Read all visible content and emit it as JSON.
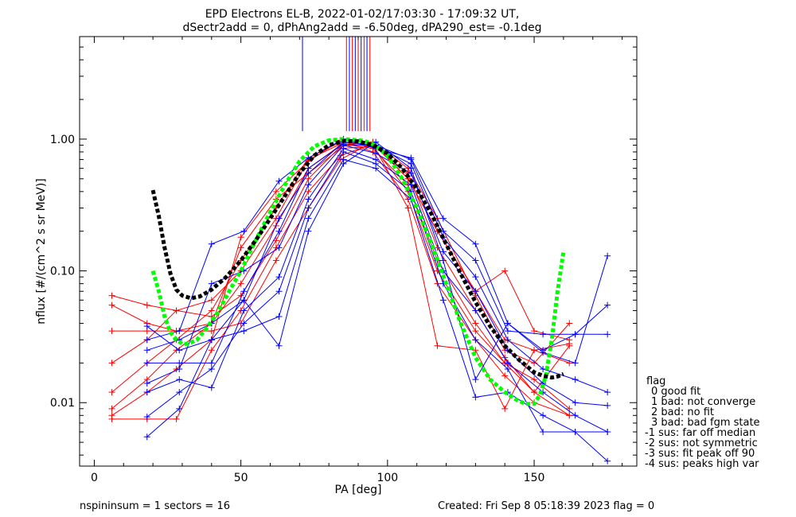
{
  "chart_data": {
    "type": "line",
    "title_line1": "EPD Electrons EL-B, 2022-01-02/17:03:30 - 17:09:32 UT,",
    "title_line2": "dSectr2add = 0, dPhAng2add = -6.50deg, dPA290_est=  -0.1deg",
    "xlabel": "PA [deg]",
    "ylabel": "nflux [#/(cm^2 s sr MeV)]",
    "xlim": [
      -5,
      185
    ],
    "ylim": [
      0.0033,
      6.0
    ],
    "yscale": "log",
    "x_ticks": [
      0,
      50,
      100,
      150
    ],
    "x_tick_labels": [
      "0",
      "50",
      "100",
      "150"
    ],
    "y_ticks": [
      0.01,
      0.1,
      1.0
    ],
    "y_tick_labels": [
      "0.01",
      "0.10",
      "1.00"
    ],
    "colors": {
      "red": "#ff0000",
      "blue": "#0000ff",
      "black": "#000000",
      "green": "#00ff00"
    },
    "red_series": [
      {
        "x": [
          6,
          18,
          28,
          40,
          50,
          62,
          73,
          84,
          95,
          107,
          117,
          130,
          140,
          150,
          162
        ],
        "y": [
          0.065,
          0.055,
          0.05,
          0.045,
          0.065,
          0.17,
          0.5,
          0.88,
          0.92,
          0.5,
          0.2,
          0.07,
          0.03,
          0.025,
          0.02
        ]
      },
      {
        "x": [
          6,
          18,
          28,
          40,
          50,
          62,
          73,
          84,
          95,
          107,
          117,
          130,
          140,
          150,
          162
        ],
        "y": [
          0.055,
          0.04,
          0.035,
          0.04,
          0.08,
          0.22,
          0.6,
          0.9,
          0.95,
          0.6,
          0.25,
          0.065,
          0.025,
          0.02,
          0.04
        ]
      },
      {
        "x": [
          6,
          18,
          28,
          40,
          50,
          62,
          73,
          84,
          95,
          107,
          117,
          130,
          140,
          150,
          162
        ],
        "y": [
          0.02,
          0.03,
          0.05,
          0.06,
          0.1,
          0.25,
          0.7,
          0.92,
          0.85,
          0.45,
          0.12,
          0.04,
          0.02,
          0.015,
          0.009
        ]
      },
      {
        "x": [
          6,
          18,
          28,
          40,
          50,
          62,
          73,
          84,
          95,
          107,
          117,
          130,
          140,
          150,
          162
        ],
        "y": [
          0.012,
          0.02,
          0.03,
          0.05,
          0.12,
          0.3,
          0.72,
          0.95,
          0.9,
          0.55,
          0.15,
          0.05,
          0.022,
          0.012,
          0.008
        ]
      },
      {
        "x": [
          6,
          18,
          28,
          40,
          50,
          62,
          73,
          84,
          95,
          107,
          117,
          130,
          140,
          150,
          162
        ],
        "y": [
          0.009,
          0.015,
          0.025,
          0.04,
          0.15,
          0.35,
          0.55,
          0.85,
          0.88,
          0.4,
          0.1,
          0.035,
          0.02,
          0.012,
          0.027
        ]
      },
      {
        "x": [
          6,
          18,
          28,
          40,
          50,
          62,
          73,
          84,
          95,
          107,
          117,
          130,
          140,
          150,
          162
        ],
        "y": [
          0.008,
          0.012,
          0.018,
          0.03,
          0.18,
          0.4,
          0.68,
          0.98,
          0.8,
          0.35,
          0.08,
          0.03,
          0.016,
          0.01,
          0.008
        ]
      },
      {
        "x": [
          6,
          18,
          28,
          40,
          50,
          62,
          73,
          84,
          95,
          107,
          117,
          130,
          140,
          150,
          162
        ],
        "y": [
          0.0075,
          0.0075,
          0.0075,
          0.025,
          0.05,
          0.15,
          0.4,
          0.75,
          0.92,
          0.3,
          0.027,
          0.025,
          0.009,
          0.025,
          0.028
        ]
      },
      {
        "x": [
          6,
          18,
          28,
          40,
          50,
          62,
          73,
          84,
          95,
          107,
          117,
          130,
          140,
          150,
          162
        ],
        "y": [
          0.035,
          0.035,
          0.035,
          0.035,
          0.04,
          0.12,
          0.3,
          0.7,
          0.95,
          0.5,
          0.2,
          0.07,
          0.1,
          0.035,
          0.03
        ]
      }
    ],
    "blue_series": [
      {
        "x": [
          18,
          29,
          40,
          51,
          63,
          73,
          85,
          96,
          108,
          119,
          130,
          141,
          153,
          164,
          175
        ],
        "y": [
          0.03,
          0.035,
          0.16,
          0.2,
          0.48,
          0.72,
          1.0,
          0.85,
          0.72,
          0.25,
          0.16,
          0.04,
          0.024,
          0.02,
          0.13
        ]
      },
      {
        "x": [
          18,
          29,
          40,
          51,
          63,
          73,
          85,
          96,
          108,
          119,
          130,
          141,
          153,
          164,
          175
        ],
        "y": [
          0.025,
          0.03,
          0.04,
          0.06,
          0.25,
          0.55,
          0.95,
          0.9,
          0.7,
          0.2,
          0.12,
          0.035,
          0.033,
          0.033,
          0.033
        ]
      },
      {
        "x": [
          18,
          29,
          40,
          51,
          63,
          73,
          85,
          96,
          108,
          119,
          130,
          141,
          153,
          164,
          175
        ],
        "y": [
          0.02,
          0.02,
          0.02,
          0.07,
          0.2,
          0.6,
          0.92,
          0.88,
          0.65,
          0.18,
          0.09,
          0.03,
          0.018,
          0.015,
          0.012
        ]
      },
      {
        "x": [
          18,
          29,
          40,
          51,
          63,
          73,
          85,
          96,
          108,
          119,
          130,
          141,
          153,
          164,
          175
        ],
        "y": [
          0.014,
          0.018,
          0.08,
          0.1,
          0.15,
          0.45,
          0.9,
          0.78,
          0.55,
          0.14,
          0.07,
          0.025,
          0.014,
          0.01,
          0.0095
        ]
      },
      {
        "x": [
          18,
          29,
          40,
          51,
          63,
          73,
          85,
          96,
          108,
          119,
          130,
          141,
          153,
          164,
          175
        ],
        "y": [
          0.012,
          0.015,
          0.013,
          0.05,
          0.09,
          0.35,
          0.85,
          0.7,
          0.45,
          0.1,
          0.05,
          0.02,
          0.012,
          0.008,
          0.006
        ]
      },
      {
        "x": [
          18,
          29,
          40,
          51,
          63,
          73,
          85,
          96,
          108,
          119,
          130,
          141,
          153,
          164,
          175
        ],
        "y": [
          0.0078,
          0.012,
          0.018,
          0.04,
          0.07,
          0.3,
          0.8,
          0.65,
          0.4,
          0.08,
          0.03,
          0.018,
          0.006,
          0.006,
          0.006
        ]
      },
      {
        "x": [
          18,
          29,
          40,
          51,
          63,
          73,
          85,
          96,
          108,
          119,
          130,
          141,
          153,
          164,
          175
        ],
        "y": [
          0.0055,
          0.009,
          0.03,
          0.035,
          0.045,
          0.25,
          0.7,
          0.6,
          0.35,
          0.06,
          0.011,
          0.012,
          0.008,
          0.006,
          0.0036
        ]
      },
      {
        "x": [
          18,
          29,
          40,
          51,
          63,
          73,
          85,
          96,
          108,
          119,
          130,
          141,
          153,
          164,
          175
        ],
        "y": [
          0.038,
          0.025,
          0.03,
          0.06,
          0.027,
          0.2,
          0.65,
          0.95,
          0.6,
          0.12,
          0.015,
          0.04,
          0.025,
          0.033,
          0.055
        ]
      }
    ],
    "upper_ticks": {
      "x": [
        71,
        86,
        87,
        88,
        89,
        90,
        91,
        92,
        93,
        94
      ],
      "y_from": [
        1.15,
        1.15,
        1.15,
        1.15,
        1.15,
        1.15,
        1.15,
        1.15,
        1.15,
        1.15
      ],
      "colors": [
        "blue",
        "red",
        "blue",
        "red",
        "blue",
        "red",
        "blue",
        "red",
        "blue",
        "red"
      ]
    },
    "black_fit": {
      "x": [
        20,
        22,
        24,
        26,
        28,
        30,
        33,
        36,
        40,
        45,
        50,
        55,
        60,
        65,
        70,
        75,
        80,
        85,
        90,
        95,
        100,
        105,
        110,
        115,
        120,
        125,
        130,
        135,
        140,
        145,
        150,
        153,
        156,
        158,
        160
      ],
      "y": [
        0.41,
        0.26,
        0.15,
        0.095,
        0.072,
        0.065,
        0.062,
        0.064,
        0.072,
        0.09,
        0.12,
        0.17,
        0.25,
        0.37,
        0.55,
        0.75,
        0.9,
        0.97,
        0.96,
        0.9,
        0.78,
        0.6,
        0.42,
        0.27,
        0.16,
        0.095,
        0.058,
        0.038,
        0.027,
        0.021,
        0.017,
        0.016,
        0.0155,
        0.0158,
        0.0165
      ]
    },
    "green_fit": {
      "x": [
        20,
        22,
        24,
        26,
        28,
        30,
        32,
        35,
        38,
        42,
        46,
        50,
        55,
        60,
        65,
        70,
        75,
        80,
        85,
        88,
        92,
        95,
        100,
        105,
        110,
        115,
        120,
        125,
        130,
        135,
        140,
        144,
        147,
        150,
        152,
        154,
        156,
        158,
        160
      ],
      "y": [
        0.1,
        0.07,
        0.045,
        0.034,
        0.03,
        0.028,
        0.028,
        0.03,
        0.036,
        0.048,
        0.07,
        0.1,
        0.17,
        0.28,
        0.45,
        0.68,
        0.88,
        0.98,
        1.0,
        0.99,
        0.97,
        0.92,
        0.75,
        0.5,
        0.3,
        0.16,
        0.08,
        0.04,
        0.022,
        0.015,
        0.012,
        0.0105,
        0.0098,
        0.0098,
        0.0115,
        0.016,
        0.03,
        0.07,
        0.14
      ]
    },
    "legend": {
      "title": "flag",
      "entries": [
        "0 good fit",
        "1 bad: not converge",
        "2 bad: no fit",
        "3 bad: bad fgm state",
        "-1 sus: far off median",
        "-2 sus: not symmetric",
        "-3 sus: fit peak off 90",
        "-4 sus: peaks high var"
      ],
      "position": "right"
    },
    "footer": {
      "left": "nspininsum =  1  sectors = 16",
      "right": "Created: Fri Sep  8 05:18:39 2023   flag = 0"
    }
  }
}
